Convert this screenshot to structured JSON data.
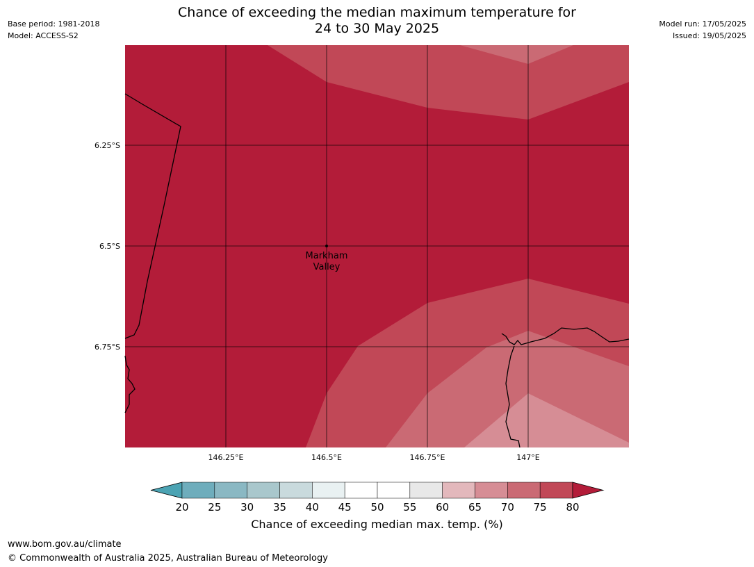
{
  "header": {
    "base_period": "Base period: 1981-2018",
    "model": "Model: ACCESS-S2",
    "model_run": "Model run: 17/05/2025",
    "issued": "Issued: 19/05/2025",
    "title_line1": "Chance of exceeding the median maximum temperature for",
    "title_line2": "24 to 30 May 2025"
  },
  "map": {
    "lon_range": [
      146.0,
      147.25
    ],
    "lat_range": [
      -6.0,
      -7.0
    ],
    "lon_ticks": [
      {
        "value": 146.25,
        "label": "146.25°E"
      },
      {
        "value": 146.5,
        "label": "146.5°E"
      },
      {
        "value": 146.75,
        "label": "146.75°E"
      },
      {
        "value": 147.0,
        "label": "147°E"
      }
    ],
    "lat_ticks": [
      {
        "value": -6.25,
        "label": "6.25°S"
      },
      {
        "value": -6.5,
        "label": "6.5°S"
      },
      {
        "value": -6.75,
        "label": "6.75°S"
      }
    ],
    "place": {
      "name_line1": "Markham",
      "name_line2": "Valley",
      "lon": 146.5,
      "lat": -6.5
    },
    "dominant_category": "80+"
  },
  "colorbar": {
    "ticks": [
      "20",
      "25",
      "30",
      "35",
      "40",
      "45",
      "50",
      "55",
      "60",
      "65",
      "70",
      "75",
      "80"
    ],
    "colors": [
      "#4ba3b3",
      "#6eadbc",
      "#8ab8c3",
      "#a9c7cc",
      "#c9dadd",
      "#e9f1f2",
      "#ffffff",
      "#ffffff",
      "#e8e8e8",
      "#e3b8bc",
      "#d68d95",
      "#ca6a74",
      "#c14857",
      "#b31c39"
    ],
    "label": "Chance of exceeding median max. temp. (%)"
  },
  "footer": {
    "url": "www.bom.gov.au/climate",
    "copyright": "© Commonwealth of Australia 2025, Australian Bureau of Meteorology"
  }
}
